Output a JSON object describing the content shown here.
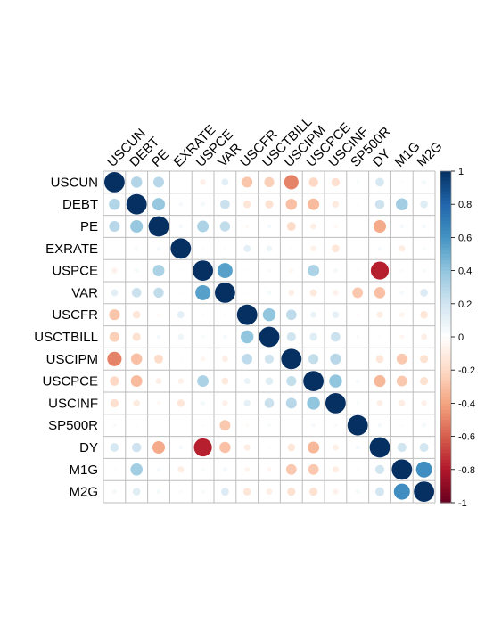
{
  "chart_data": {
    "type": "heatmap",
    "variables": [
      "USCUN",
      "DEBT",
      "PE",
      "EXRATE",
      "USPCE",
      "VAR",
      "USCFR",
      "USCTBILL",
      "USCIPM",
      "USCPCE",
      "USCINF",
      "SP500R",
      "DY",
      "M1G",
      "M2G"
    ],
    "matrix": [
      [
        1.0,
        0.3,
        0.28,
        0.01,
        -0.08,
        0.12,
        -0.28,
        -0.24,
        -0.5,
        -0.21,
        -0.17,
        0.03,
        0.18,
        0.02,
        0.05
      ],
      [
        0.3,
        1.0,
        0.38,
        0.04,
        0.05,
        0.22,
        -0.14,
        -0.16,
        -0.3,
        -0.32,
        -0.11,
        -0.02,
        0.21,
        0.35,
        0.14
      ],
      [
        0.28,
        0.38,
        1.0,
        0.04,
        0.32,
        0.25,
        -0.03,
        0.05,
        -0.19,
        -0.09,
        -0.04,
        0.0,
        -0.38,
        0.04,
        0.05
      ],
      [
        0.01,
        0.04,
        0.04,
        1.0,
        0.02,
        0.02,
        0.12,
        0.08,
        0.02,
        -0.08,
        -0.14,
        0.0,
        0.04,
        -0.1,
        0.03
      ],
      [
        -0.08,
        0.05,
        0.32,
        0.02,
        1.0,
        0.55,
        0.02,
        0.03,
        -0.05,
        0.32,
        0.05,
        -0.02,
        -0.78,
        0.03,
        0.04
      ],
      [
        0.12,
        0.22,
        0.25,
        0.02,
        0.55,
        1.0,
        0.02,
        0.05,
        -0.09,
        -0.12,
        -0.08,
        -0.27,
        -0.3,
        0.05,
        0.15
      ],
      [
        -0.28,
        -0.14,
        -0.03,
        0.12,
        0.02,
        0.02,
        1.0,
        0.4,
        0.26,
        0.09,
        0.11,
        -0.03,
        -0.1,
        -0.06,
        -0.14
      ],
      [
        -0.24,
        -0.16,
        0.05,
        0.08,
        0.03,
        0.05,
        0.4,
        1.0,
        0.2,
        0.14,
        0.22,
        0.03,
        0.02,
        -0.05,
        -0.09
      ],
      [
        -0.5,
        -0.3,
        -0.19,
        0.02,
        -0.05,
        -0.09,
        0.26,
        0.2,
        1.0,
        0.24,
        0.28,
        0.01,
        -0.14,
        -0.27,
        -0.16
      ],
      [
        -0.21,
        -0.32,
        -0.09,
        -0.08,
        0.32,
        -0.12,
        0.09,
        0.14,
        0.24,
        1.0,
        0.4,
        0.04,
        -0.33,
        -0.27,
        -0.16
      ],
      [
        -0.17,
        -0.11,
        -0.04,
        -0.14,
        0.05,
        -0.08,
        0.11,
        0.22,
        0.28,
        0.4,
        1.0,
        0.03,
        -0.09,
        -0.1,
        -0.08
      ],
      [
        0.03,
        -0.02,
        0.0,
        0.0,
        -0.02,
        -0.27,
        -0.03,
        0.03,
        0.01,
        0.04,
        0.03,
        1.0,
        0.05,
        0.02,
        0.05
      ],
      [
        0.18,
        0.21,
        -0.38,
        0.04,
        -0.78,
        -0.3,
        -0.1,
        0.02,
        -0.14,
        -0.33,
        -0.09,
        0.05,
        1.0,
        0.2,
        0.19
      ],
      [
        0.02,
        0.35,
        0.04,
        -0.1,
        0.03,
        0.05,
        -0.06,
        -0.05,
        -0.27,
        -0.27,
        -0.1,
        0.02,
        0.2,
        1.0,
        0.62
      ],
      [
        0.05,
        0.14,
        0.05,
        0.03,
        0.04,
        0.15,
        -0.14,
        -0.09,
        -0.16,
        -0.16,
        -0.08,
        0.05,
        0.19,
        0.62,
        1.0
      ]
    ],
    "color_scale": {
      "range": [
        -1,
        1
      ],
      "ticks": [
        "-1",
        "-0.8",
        "-0.6",
        "-0.4",
        "-0.2",
        "0",
        "0.2",
        "0.4",
        "0.6",
        "0.8",
        "1"
      ],
      "colors": [
        "#67001F",
        "#B2182B",
        "#D6604D",
        "#F4A582",
        "#FDDBC7",
        "#FFFFFF",
        "#D1E5F0",
        "#92C5DE",
        "#4393C3",
        "#2166AC",
        "#053061"
      ]
    },
    "grid": true,
    "legend_placement": "right",
    "title": "",
    "xlabel": "",
    "ylabel": ""
  }
}
